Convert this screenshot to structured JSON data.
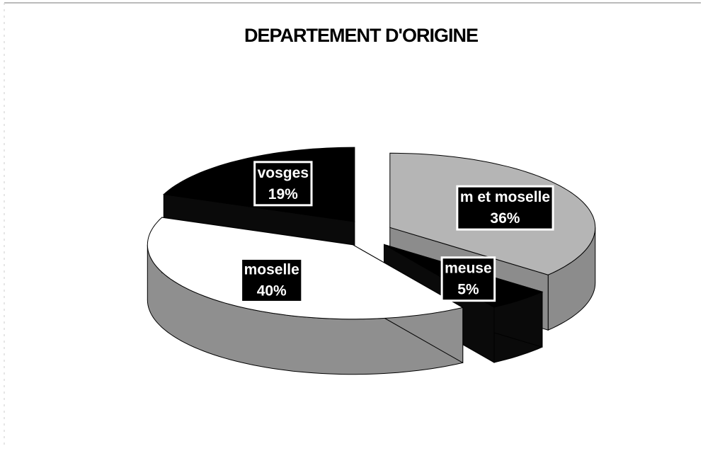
{
  "chart_data": {
    "type": "pie",
    "title": "DEPARTEMENT D'ORIGINE",
    "categories": [
      "m et moselle",
      "meuse",
      "moselle",
      "vosges"
    ],
    "values": [
      36,
      5,
      40,
      19
    ],
    "value_labels": [
      "36%",
      "5%",
      "40%",
      "19%"
    ],
    "colors": [
      "#b5b5b5",
      "#000000",
      "#ffffff",
      "#000000"
    ],
    "side_colors": [
      "#8c8c8c",
      "#0a0a0a",
      "#8f8f8f",
      "#0a0a0a"
    ]
  }
}
